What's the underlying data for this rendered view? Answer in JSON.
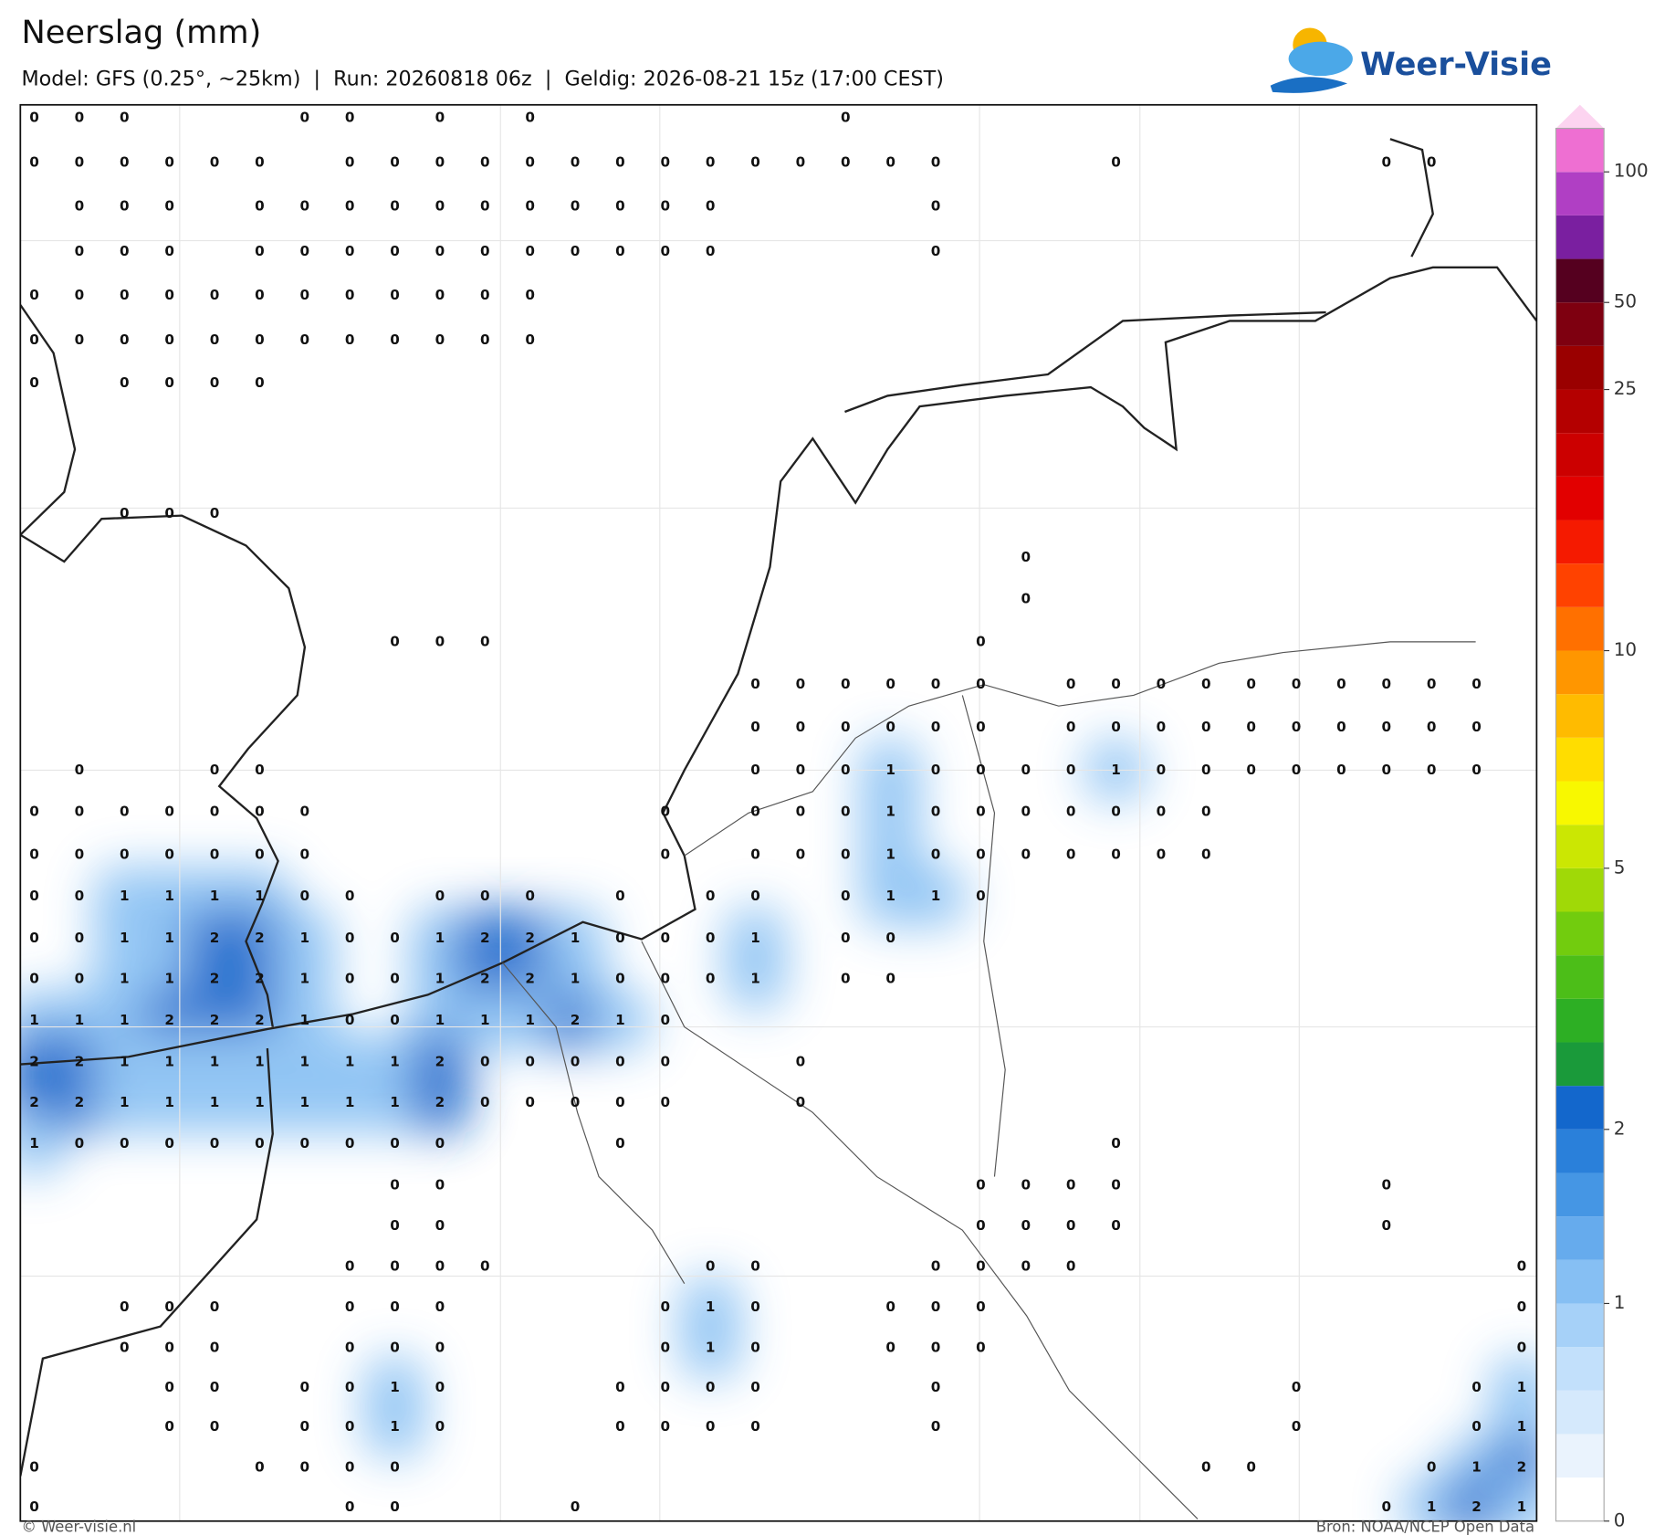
{
  "header": {
    "title": "Neerslag (mm)",
    "subtitle": "Model: GFS (0.25°, ~25km)  |  Run: 20260818 06z  |  Geldig: 2026-08-21 15z (17:00 CEST)"
  },
  "logo": "Weer-Visie",
  "footer": {
    "left": "© Weer-visie.nl",
    "right": "Bron: NOAA/NCEP Open Data"
  },
  "map": {
    "rows": [
      [
        0,
        0,
        0,
        null,
        null,
        null,
        0,
        0,
        null,
        0,
        null,
        0,
        null,
        null,
        null,
        null,
        null,
        null,
        0,
        null,
        null,
        null,
        null,
        null,
        null,
        null,
        null,
        null,
        null,
        null,
        null,
        null,
        null,
        null
      ],
      [
        0,
        0,
        0,
        0,
        0,
        0,
        null,
        0,
        0,
        0,
        0,
        0,
        0,
        0,
        0,
        0,
        0,
        0,
        0,
        0,
        0,
        null,
        null,
        null,
        0,
        null,
        null,
        null,
        null,
        null,
        0,
        0,
        null,
        null
      ],
      [
        null,
        0,
        0,
        0,
        null,
        0,
        0,
        0,
        0,
        0,
        0,
        0,
        0,
        0,
        0,
        0,
        null,
        null,
        null,
        null,
        0,
        null,
        null,
        null,
        null,
        null,
        null,
        null,
        null,
        null,
        null,
        null,
        null,
        null
      ],
      [
        null,
        0,
        0,
        0,
        null,
        0,
        0,
        0,
        0,
        0,
        0,
        0,
        0,
        0,
        0,
        0,
        null,
        null,
        null,
        null,
        0,
        null,
        null,
        null,
        null,
        null,
        null,
        null,
        null,
        null,
        null,
        null,
        null,
        null
      ],
      [
        0,
        0,
        0,
        0,
        0,
        0,
        0,
        0,
        0,
        0,
        0,
        0,
        null,
        null,
        null,
        null,
        null,
        null,
        null,
        null,
        null,
        null,
        null,
        null,
        null,
        null,
        null,
        null,
        null,
        null,
        null,
        null,
        null,
        null
      ],
      [
        0,
        0,
        0,
        0,
        0,
        0,
        0,
        0,
        0,
        0,
        0,
        0,
        null,
        null,
        null,
        null,
        null,
        null,
        null,
        null,
        null,
        null,
        null,
        null,
        null,
        null,
        null,
        null,
        null,
        null,
        null,
        null,
        null,
        null
      ],
      [
        0,
        null,
        0,
        0,
        0,
        0,
        null,
        null,
        null,
        null,
        null,
        null,
        null,
        null,
        null,
        null,
        null,
        null,
        null,
        null,
        null,
        null,
        null,
        null,
        null,
        null,
        null,
        null,
        null,
        null,
        null,
        null,
        null,
        null
      ],
      [
        null,
        null,
        0,
        0,
        0,
        null,
        null,
        null,
        null,
        null,
        null,
        null,
        null,
        null,
        null,
        null,
        null,
        null,
        null,
        null,
        null,
        null,
        null,
        null,
        null,
        null,
        null,
        null,
        null,
        null,
        null,
        null,
        null,
        null
      ],
      [
        null,
        null,
        null,
        null,
        null,
        null,
        null,
        null,
        null,
        null,
        null,
        null,
        null,
        null,
        null,
        null,
        null,
        null,
        null,
        null,
        null,
        null,
        0,
        null,
        null,
        null,
        null,
        null,
        null,
        null,
        null,
        null,
        null,
        null
      ],
      [
        null,
        null,
        null,
        null,
        null,
        null,
        null,
        null,
        null,
        null,
        null,
        null,
        null,
        null,
        null,
        null,
        null,
        null,
        null,
        null,
        null,
        null,
        0,
        null,
        null,
        null,
        null,
        null,
        null,
        null,
        null,
        null,
        null,
        null
      ],
      [
        null,
        null,
        null,
        null,
        null,
        null,
        null,
        null,
        0,
        0,
        0,
        null,
        null,
        null,
        null,
        null,
        null,
        null,
        null,
        null,
        null,
        0,
        null,
        null,
        null,
        null,
        null,
        null,
        null,
        null,
        null,
        null,
        null,
        null
      ],
      [
        null,
        null,
        null,
        null,
        null,
        null,
        null,
        null,
        null,
        null,
        null,
        null,
        null,
        null,
        null,
        null,
        0,
        0,
        0,
        0,
        0,
        0,
        null,
        0,
        0,
        0,
        0,
        0,
        0,
        0,
        0,
        0,
        0,
        null
      ],
      [
        null,
        null,
        null,
        null,
        null,
        null,
        null,
        null,
        null,
        null,
        null,
        null,
        null,
        null,
        null,
        null,
        0,
        0,
        0,
        0,
        0,
        0,
        null,
        0,
        0,
        0,
        0,
        0,
        0,
        0,
        0,
        0,
        0,
        null
      ],
      [
        null,
        0,
        null,
        null,
        0,
        0,
        null,
        null,
        null,
        null,
        null,
        null,
        null,
        null,
        null,
        null,
        0,
        0,
        0,
        1,
        0,
        0,
        0,
        0,
        1,
        0,
        0,
        0,
        0,
        0,
        0,
        0,
        0,
        null
      ],
      [
        0,
        0,
        0,
        0,
        0,
        0,
        0,
        null,
        null,
        null,
        null,
        null,
        null,
        null,
        0,
        null,
        0,
        0,
        0,
        1,
        0,
        0,
        0,
        0,
        0,
        0,
        0,
        null,
        null,
        null,
        null,
        null,
        null,
        null
      ],
      [
        0,
        0,
        0,
        0,
        0,
        0,
        0,
        null,
        null,
        null,
        null,
        null,
        null,
        null,
        0,
        null,
        0,
        0,
        0,
        1,
        0,
        0,
        0,
        0,
        0,
        0,
        0,
        null,
        null,
        null,
        null,
        null,
        null,
        null
      ],
      [
        0,
        0,
        1,
        1,
        1,
        1,
        0,
        0,
        null,
        0,
        0,
        0,
        null,
        0,
        null,
        0,
        0,
        null,
        0,
        1,
        1,
        0,
        null,
        null,
        null,
        null,
        null,
        null,
        null,
        null,
        null,
        null,
        null,
        null
      ],
      [
        0,
        0,
        1,
        1,
        2,
        2,
        1,
        0,
        0,
        1,
        2,
        2,
        1,
        0,
        0,
        0,
        1,
        null,
        0,
        0,
        null,
        null,
        null,
        null,
        null,
        null,
        null,
        null,
        null,
        null,
        null,
        null,
        null,
        null
      ],
      [
        0,
        0,
        1,
        1,
        2,
        2,
        1,
        0,
        0,
        1,
        2,
        2,
        1,
        0,
        0,
        0,
        1,
        null,
        0,
        0,
        null,
        null,
        null,
        null,
        null,
        null,
        null,
        null,
        null,
        null,
        null,
        null,
        null,
        null
      ],
      [
        1,
        1,
        1,
        2,
        2,
        2,
        1,
        0,
        0,
        1,
        1,
        1,
        2,
        1,
        0,
        null,
        null,
        null,
        null,
        null,
        null,
        null,
        null,
        null,
        null,
        null,
        null,
        null,
        null,
        null,
        null,
        null,
        null,
        null
      ],
      [
        2,
        2,
        1,
        1,
        1,
        1,
        1,
        1,
        1,
        2,
        0,
        0,
        0,
        0,
        0,
        null,
        null,
        0,
        null,
        null,
        null,
        null,
        null,
        null,
        null,
        null,
        null,
        null,
        null,
        null,
        null,
        null,
        null,
        null
      ],
      [
        2,
        2,
        1,
        1,
        1,
        1,
        1,
        1,
        1,
        2,
        0,
        0,
        0,
        0,
        0,
        null,
        null,
        0,
        null,
        null,
        null,
        null,
        null,
        null,
        null,
        null,
        null,
        null,
        null,
        null,
        null,
        null,
        null,
        null
      ],
      [
        1,
        0,
        0,
        0,
        0,
        0,
        0,
        0,
        0,
        0,
        null,
        null,
        null,
        0,
        null,
        null,
        null,
        null,
        null,
        null,
        null,
        null,
        null,
        null,
        0,
        null,
        null,
        null,
        null,
        null,
        null,
        null,
        null,
        null
      ],
      [
        null,
        null,
        null,
        null,
        null,
        null,
        null,
        null,
        0,
        0,
        null,
        null,
        null,
        null,
        null,
        null,
        null,
        null,
        null,
        null,
        null,
        0,
        0,
        0,
        0,
        null,
        null,
        null,
        null,
        null,
        0,
        null,
        null,
        null
      ],
      [
        null,
        null,
        null,
        null,
        null,
        null,
        null,
        null,
        0,
        0,
        null,
        null,
        null,
        null,
        null,
        null,
        null,
        null,
        null,
        null,
        null,
        0,
        0,
        0,
        0,
        null,
        null,
        null,
        null,
        null,
        0,
        null,
        null,
        null
      ],
      [
        null,
        null,
        null,
        null,
        null,
        null,
        null,
        0,
        0,
        0,
        0,
        null,
        null,
        null,
        null,
        0,
        0,
        null,
        null,
        null,
        0,
        0,
        0,
        0,
        null,
        null,
        null,
        null,
        null,
        null,
        null,
        null,
        null,
        0
      ],
      [
        null,
        null,
        0,
        0,
        0,
        null,
        null,
        0,
        0,
        0,
        null,
        null,
        null,
        null,
        0,
        1,
        0,
        null,
        null,
        0,
        0,
        0,
        null,
        null,
        null,
        null,
        null,
        null,
        null,
        null,
        null,
        null,
        null,
        0
      ],
      [
        null,
        null,
        0,
        0,
        0,
        null,
        null,
        0,
        0,
        0,
        null,
        null,
        null,
        null,
        0,
        1,
        0,
        null,
        null,
        0,
        0,
        0,
        null,
        null,
        null,
        null,
        null,
        null,
        null,
        null,
        null,
        null,
        null,
        0
      ],
      [
        null,
        null,
        null,
        0,
        0,
        null,
        0,
        0,
        1,
        0,
        null,
        null,
        null,
        0,
        0,
        0,
        0,
        null,
        null,
        null,
        0,
        null,
        null,
        null,
        null,
        null,
        null,
        null,
        0,
        null,
        null,
        null,
        0,
        1
      ],
      [
        null,
        null,
        null,
        0,
        0,
        null,
        0,
        0,
        1,
        0,
        null,
        null,
        null,
        0,
        0,
        0,
        0,
        null,
        null,
        null,
        0,
        null,
        null,
        null,
        null,
        null,
        null,
        null,
        0,
        null,
        null,
        null,
        0,
        1
      ],
      [
        0,
        null,
        null,
        null,
        null,
        0,
        0,
        0,
        0,
        null,
        null,
        null,
        null,
        null,
        null,
        null,
        null,
        null,
        null,
        null,
        null,
        null,
        null,
        null,
        null,
        null,
        0,
        0,
        null,
        null,
        null,
        0,
        1,
        2
      ],
      [
        0,
        null,
        null,
        null,
        null,
        null,
        null,
        0,
        0,
        null,
        null,
        null,
        0,
        null,
        null,
        null,
        null,
        null,
        null,
        null,
        null,
        null,
        null,
        null,
        null,
        null,
        null,
        null,
        null,
        null,
        0,
        1,
        2,
        1
      ]
    ]
  },
  "colorbar": {
    "levels": [
      0,
      0.1,
      0.25,
      0.5,
      0.75,
      1,
      1.25,
      1.5,
      1.75,
      2,
      2.5,
      3,
      3.5,
      4,
      4.5,
      5,
      6,
      7,
      8,
      9,
      10,
      12,
      14,
      16,
      18,
      20,
      25,
      35,
      50,
      65,
      80,
      100
    ],
    "colors": [
      "#ffffff",
      "#eaf3fd",
      "#d5e9fc",
      "#c2e0fb",
      "#a6d1f8",
      "#86bff3",
      "#66abed",
      "#4596e4",
      "#2a80da",
      "#1367cc",
      "#1a9a3a",
      "#2daf24",
      "#4cbe18",
      "#72cc0e",
      "#a0d907",
      "#cbe703",
      "#f8f800",
      "#ffdd00",
      "#ffbb00",
      "#ff9600",
      "#ff7000",
      "#ff4200",
      "#f51a00",
      "#e20000",
      "#cc0000",
      "#b40000",
      "#9a0000",
      "#7e0010",
      "#55001f",
      "#7a1fa0",
      "#b03fc4",
      "#ee6fd2"
    ],
    "top_color": "#fcd4f0",
    "ticks": [
      0,
      1,
      2,
      5,
      10,
      25,
      50,
      100
    ]
  }
}
